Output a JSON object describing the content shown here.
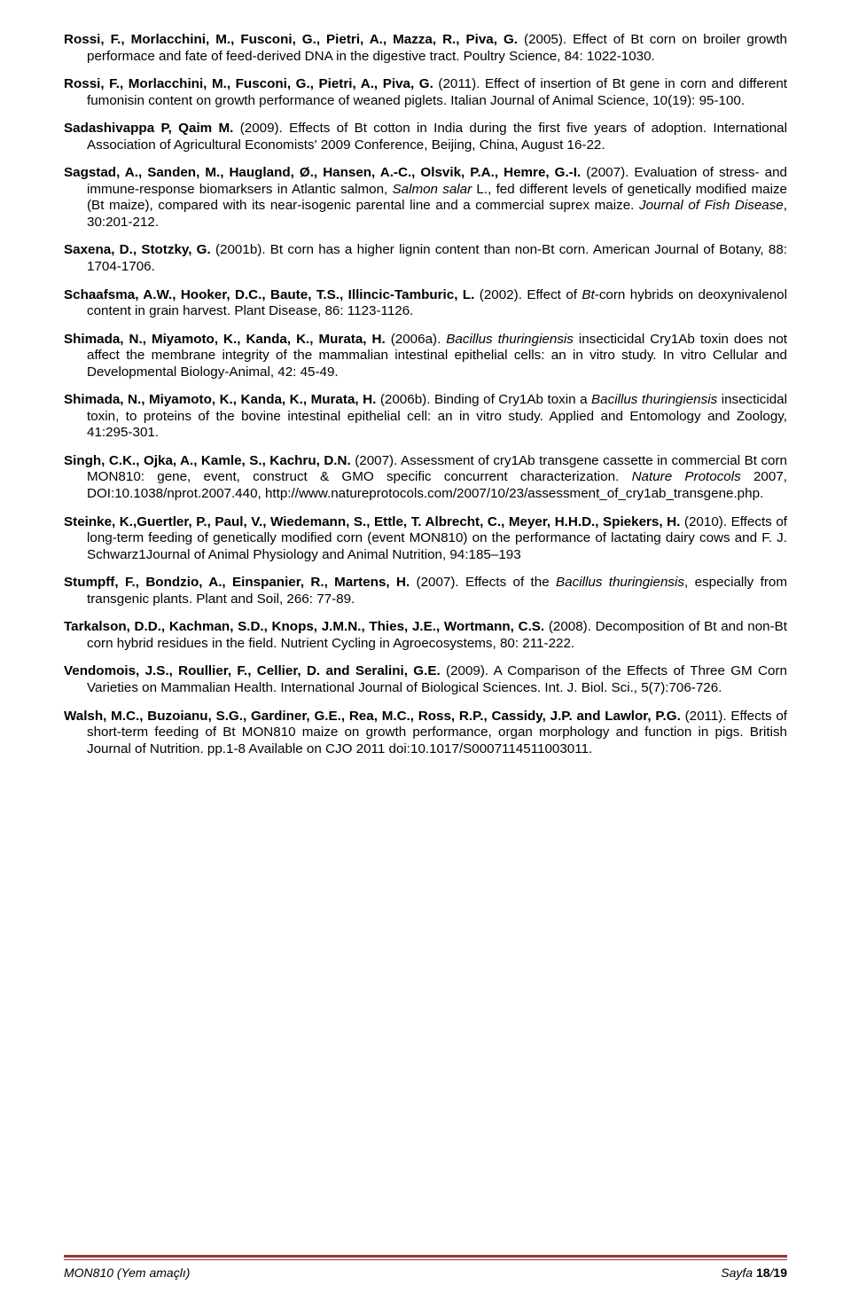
{
  "refs": [
    {
      "authors_bold": "Rossi, F., Morlacchini, M., Fusconi, G., Pietri, A., Mazza, R., Piva, G.",
      "year": " (2005). ",
      "rest": "Effect of Bt corn on broiler growth performace and fate of feed-derived DNA in the digestive tract. Poultry Science, 84: 1022-1030."
    },
    {
      "authors_bold": "Rossi, F., Morlacchini, M., Fusconi, G., Pietri, A., Piva, G.",
      "year": " (2011). ",
      "rest": "Effect of insertion of Bt gene in corn and different fumonisin content on growth performance of weaned piglets. Italian Journal of Animal Science, 10(19): 95-100."
    },
    {
      "authors_bold": "Sadashivappa P, Qaim M.",
      "year": " (2009). ",
      "rest": "Effects of Bt cotton in India during the first five years of adoption. International Association of Agricultural Economists' 2009 Conference, Beijing, China, August 16-22."
    },
    {
      "authors_bold": "Sagstad, A., Sanden, M., Haugland, Ø., Hansen, A.-C., Olsvik, P.A., Hemre, G.-I.",
      "year": " (2007). ",
      "pre_italic": "Evaluation of stress- and immune-response biomarksers in Atlantic salmon, ",
      "italic1": "Salmon salar",
      "mid": " L., fed different levels of genetically modified maize (Bt maize), compared with its near-isogenic parental line and a commercial suprex maize. ",
      "italic2": "Journal of Fish Disease",
      "post": ", 30:201-212."
    },
    {
      "authors_bold": "Saxena, D., Stotzky, G.",
      "year": " (2001b). ",
      "rest": "Bt corn has a higher lignin content than non-Bt corn. American Journal of Botany, 88: 1704-1706."
    },
    {
      "authors_bold": "Schaafsma, A.W., Hooker, D.C., Baute, T.S., Illincic-Tamburic, L.",
      "year": " (2002). ",
      "pre_italic": "Effect of ",
      "italic1": "Bt",
      "post": "-corn hybrids on deoxynivalenol content in grain harvest. Plant Disease, 86: 1123-1126."
    },
    {
      "authors_bold": "Shimada, N., Miyamoto, K., Kanda, K., Murata, H.",
      "year": " (2006a). ",
      "italic1": "Bacillus thuringiensis",
      "post": " insecticidal Cry1Ab toxin does not affect the membrane integrity of the mammalian intestinal epithelial cells: an in vitro study. In vitro Cellular and Developmental Biology-Animal, 42: 45-49."
    },
    {
      "authors_bold": "Shimada, N., Miyamoto, K., Kanda, K., Murata, H.",
      "year": " (2006b). ",
      "pre_italic": "Binding of Cry1Ab toxin a ",
      "italic1": "Bacillus thuringiensis",
      "post": " insecticidal toxin, to proteins of the bovine intestinal epithelial cell: an in vitro study. Applied and Entomology and Zoology, 41:295-301."
    },
    {
      "authors_bold": "Singh, C.K., Ojka, A., Kamle, S., Kachru, D.N.",
      "year": " (2007). ",
      "pre_italic": "Assessment of cry1Ab transgene cassette in commercial Bt corn MON810: gene, event, construct & GMO specific concurrent characterization. ",
      "italic1": "Nature Protocols",
      "post": " 2007, DOI:10.1038/nprot.2007.440, http://www.natureprotocols.com/2007/10/23/assessment_of_cry1ab_transgene.php."
    },
    {
      "authors_bold": "Steinke, K.,Guertler, P., Paul, V., Wiedemann, S., Ettle, T. Albrecht, C., Meyer, H.H.D., Spiekers, H.",
      "year": " (2010). ",
      "rest": "Effects of long-term feeding of genetically modified corn (event MON810) on the performance of lactating dairy cows and F. J. Schwarz1Journal of Animal Physiology and Animal Nutrition, 94:185–193"
    },
    {
      "authors_bold": "Stumpff, F., Bondzio, A., Einspanier, R., Martens, H.",
      "year": " (2007). ",
      "pre_italic": "Effects of the ",
      "italic1": "Bacillus thuringiensis",
      "post": ", especially from transgenic plants. Plant and Soil, 266: 77-89."
    },
    {
      "authors_bold": "Tarkalson, D.D., Kachman, S.D., Knops, J.M.N., Thies, J.E., Wortmann, C.S.",
      "year": " (2008). ",
      "rest": "Decomposition of Bt and non-Bt corn hybrid residues in the field. Nutrient Cycling in Agroecosystems, 80: 211-222."
    },
    {
      "authors_bold": "Vendomois, J.S., Roullier, F., Cellier, D. and Seralini, G.E.",
      "year": " (2009). ",
      "rest": "A Comparison of the Effects of Three GM Corn Varieties on Mammalian Health. International Journal of Biological Sciences. Int. J. Biol. Sci., 5(7):706-726."
    },
    {
      "authors_bold": "Walsh, M.C., Buzoianu, S.G., Gardiner, G.E., Rea, M.C., Ross, R.P., Cassidy, J.P. and Lawlor, P.G.",
      "year": " (2011). ",
      "rest": "Effects of short-term feeding of Bt MON810 maize on growth performance, organ morphology and function in pigs. British Journal of Nutrition. pp.1-8 Available on CJO 2011 doi:10.1017/S0007114511003011."
    }
  ],
  "footer": {
    "left": "MON810 (Yem amaçlı)",
    "right_prefix": "Sayfa ",
    "page_current": "18",
    "page_sep": "/",
    "page_total": "19"
  }
}
